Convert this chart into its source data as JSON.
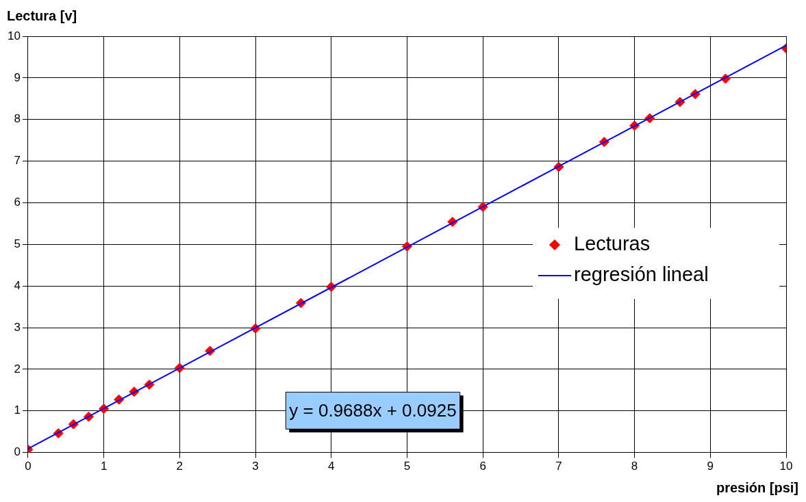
{
  "chart_data": {
    "type": "scatter",
    "xlabel": "presión [psi]",
    "ylabel": "Lectura [v]",
    "series": [
      {
        "name": "Lecturas",
        "type": "scatter",
        "color": "#ff0000",
        "marker": "diamond",
        "x": [
          0,
          0.4,
          0.6,
          0.8,
          1.0,
          1.2,
          1.4,
          1.6,
          2.0,
          2.4,
          3.0,
          3.6,
          4.0,
          5.0,
          5.6,
          6.0,
          7.0,
          7.6,
          8.0,
          8.2,
          8.6,
          8.8,
          9.2,
          10
        ],
        "values": [
          0.07,
          0.46,
          0.68,
          0.86,
          1.05,
          1.27,
          1.46,
          1.63,
          2.03,
          2.44,
          2.98,
          3.59,
          3.98,
          4.95,
          5.54,
          5.9,
          6.86,
          7.46,
          7.85,
          8.03,
          8.42,
          8.61,
          8.98,
          9.71
        ]
      },
      {
        "name": "regresión lineal",
        "type": "line",
        "color": "#0000ff",
        "line_style": "solid",
        "marker": "none",
        "x": [
          0,
          10
        ],
        "values": [
          0.09,
          9.78
        ]
      }
    ],
    "xlim": [
      0,
      10
    ],
    "xticks": [
      0,
      1,
      2,
      3,
      4,
      5,
      6,
      7,
      8,
      9,
      10
    ],
    "ylim": [
      0,
      10
    ],
    "yticks": [
      0,
      1,
      2,
      3,
      4,
      5,
      6,
      7,
      8,
      9,
      10
    ],
    "grid": true,
    "legend": "right",
    "annotations": [
      "y = 0.9688x + 0.0925"
    ]
  }
}
